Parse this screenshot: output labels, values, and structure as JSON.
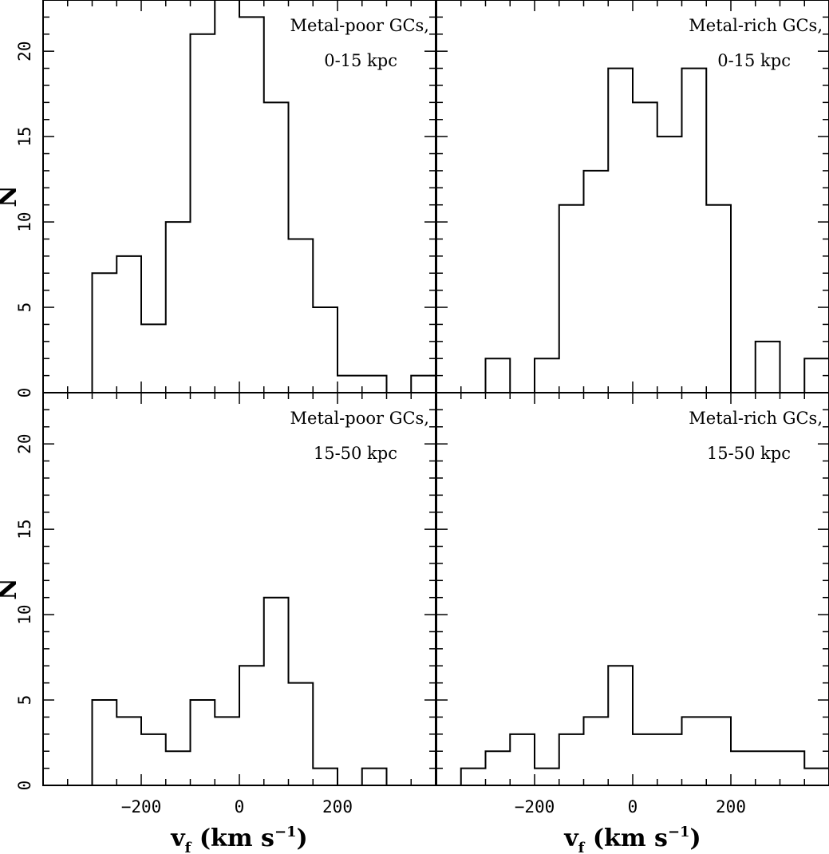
{
  "chart_data": {
    "type": "bar",
    "layout": "2x2 shared axes",
    "xlim": [
      -400,
      400
    ],
    "ylim": [
      0,
      23
    ],
    "bin_width": 50,
    "x_ticks": [
      -200,
      0,
      200
    ],
    "x_tick_labels": [
      "−200",
      "0",
      "200"
    ],
    "y_ticks": [
      0,
      5,
      10,
      15,
      20
    ],
    "y_tick_labels": [
      "0",
      "5",
      "10",
      "15",
      "20"
    ],
    "xlabel": {
      "main": "v",
      "sub": "f",
      "units": "(km s",
      "exp": "−1",
      "close": ")"
    },
    "ylabel": "N",
    "panels": [
      {
        "id": "metal-poor-0-15",
        "row": 0,
        "col": 0,
        "annotation": [
          "Metal-poor GCs,",
          "0-15 kpc"
        ],
        "bin_edges": [
          -300,
          -250,
          -200,
          -150,
          -100,
          -50,
          0,
          50,
          100,
          150,
          200,
          250,
          300,
          350,
          400
        ],
        "counts": [
          7,
          8,
          4,
          10,
          21,
          23,
          22,
          17,
          9,
          5,
          1,
          1,
          0,
          1
        ]
      },
      {
        "id": "metal-rich-0-15",
        "row": 0,
        "col": 1,
        "annotation": [
          "Metal-rich GCs,",
          "0-15 kpc"
        ],
        "bin_edges": [
          -300,
          -250,
          -200,
          -150,
          -100,
          -50,
          0,
          50,
          100,
          150,
          200,
          250,
          300,
          350,
          400
        ],
        "counts": [
          2,
          0,
          2,
          11,
          13,
          19,
          17,
          15,
          19,
          11,
          0,
          3,
          0,
          2
        ]
      },
      {
        "id": "metal-poor-15-50",
        "row": 1,
        "col": 0,
        "annotation": [
          "Metal-poor GCs,",
          "15-50 kpc"
        ],
        "bin_edges": [
          -300,
          -250,
          -200,
          -150,
          -100,
          -50,
          0,
          50,
          100,
          150,
          200,
          250,
          300
        ],
        "counts": [
          5,
          4,
          3,
          2,
          5,
          4,
          7,
          11,
          6,
          1,
          0,
          1
        ]
      },
      {
        "id": "metal-rich-15-50",
        "row": 1,
        "col": 1,
        "annotation": [
          "Metal-rich GCs,",
          "15-50 kpc"
        ],
        "bin_edges": [
          -350,
          -300,
          -250,
          -200,
          -150,
          -100,
          -50,
          0,
          50,
          100,
          150,
          200,
          250,
          300,
          350,
          400
        ],
        "counts": [
          1,
          2,
          3,
          1,
          3,
          4,
          7,
          3,
          3,
          4,
          4,
          2,
          2,
          2,
          1
        ]
      }
    ]
  }
}
